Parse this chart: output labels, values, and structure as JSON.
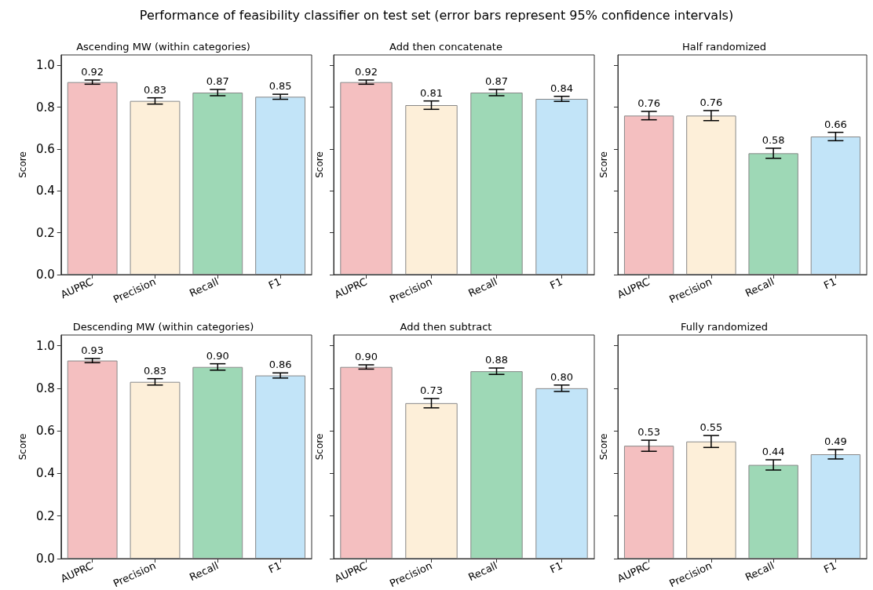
{
  "chart_data": [
    {
      "type": "bar",
      "title": "Ascending MW (within categories)",
      "ylabel": "Score",
      "annotations": [
        "Performance of feasibility classifier on test set (error bars represent 95% confidence intervals)"
      ],
      "categories": [
        "AUPRC",
        "Precision",
        "Recall",
        "F1"
      ],
      "values": [
        0.92,
        0.83,
        0.87,
        0.85
      ],
      "value_labels": [
        "0.92",
        "0.83",
        "0.87",
        "0.85"
      ],
      "errors": [
        0.01,
        0.015,
        0.015,
        0.012
      ],
      "colors": [
        "#f4bfc0",
        "#fdefd9",
        "#9ed8b6",
        "#c2e4f8"
      ],
      "ylim": [
        0,
        1.05
      ],
      "yticks": [
        {
          "value": 0,
          "label": "0.0"
        },
        {
          "value": 0.2,
          "label": "0.2"
        },
        {
          "value": 0.4,
          "label": "0.4"
        },
        {
          "value": 0.6,
          "label": "0.6"
        },
        {
          "value": 0.8,
          "label": "0.8"
        },
        {
          "value": 1,
          "label": "1.0"
        }
      ]
    },
    {
      "type": "bar",
      "title": "Add then concatenate",
      "ylabel": "Score",
      "categories": [
        "AUPRC",
        "Precision",
        "Recall",
        "F1"
      ],
      "values": [
        0.92,
        0.81,
        0.87,
        0.84
      ],
      "value_labels": [
        "0.92",
        "0.81",
        "0.87",
        "0.84"
      ],
      "errors": [
        0.01,
        0.02,
        0.015,
        0.012
      ],
      "colors": [
        "#f4bfc0",
        "#fdefd9",
        "#9ed8b6",
        "#c2e4f8"
      ],
      "ylim": [
        0,
        1.05
      ],
      "yticks": [
        {
          "value": 0,
          "label": null
        },
        {
          "value": 0.2,
          "label": null
        },
        {
          "value": 0.4,
          "label": null
        },
        {
          "value": 0.6,
          "label": null
        },
        {
          "value": 0.8,
          "label": null
        },
        {
          "value": 1,
          "label": null
        }
      ],
      "tick_labels": "x"
    },
    {
      "type": "bar",
      "title": "Half randomized",
      "ylabel": "Score",
      "categories": [
        "AUPRC",
        "Precision",
        "Recall",
        "F1"
      ],
      "values": [
        0.76,
        0.76,
        0.58,
        0.66
      ],
      "value_labels": [
        "0.76",
        "0.76",
        "0.58",
        "0.66"
      ],
      "errors": [
        0.02,
        0.024,
        0.024,
        0.02
      ],
      "colors": [
        "#f4bfc0",
        "#fdefd9",
        "#9ed8b6",
        "#c2e4f8"
      ],
      "ylim": [
        0,
        1.05
      ],
      "yticks": [
        {
          "value": 0,
          "label": null
        },
        {
          "value": 0.2,
          "label": null
        },
        {
          "value": 0.4,
          "label": null
        },
        {
          "value": 0.6,
          "label": null
        },
        {
          "value": 0.8,
          "label": null
        },
        {
          "value": 1,
          "label": null
        }
      ],
      "tick_labels": "x"
    },
    {
      "type": "bar",
      "title": "Descending MW (within categories)",
      "ylabel": "Score",
      "categories": [
        "AUPRC",
        "Precision",
        "Recall",
        "F1"
      ],
      "values": [
        0.93,
        0.83,
        0.9,
        0.86
      ],
      "value_labels": [
        "0.93",
        "0.83",
        "0.90",
        "0.86"
      ],
      "errors": [
        0.01,
        0.015,
        0.015,
        0.012
      ],
      "colors": [
        "#f4bfc0",
        "#fdefd9",
        "#9ed8b6",
        "#c2e4f8"
      ],
      "ylim": [
        0,
        1.05
      ],
      "yticks": [
        {
          "value": 0,
          "label": "0.0"
        },
        {
          "value": 0.2,
          "label": "0.2"
        },
        {
          "value": 0.4,
          "label": "0.4"
        },
        {
          "value": 0.6,
          "label": "0.6"
        },
        {
          "value": 0.8,
          "label": "0.8"
        },
        {
          "value": 1,
          "label": "1.0"
        }
      ]
    },
    {
      "type": "bar",
      "title": "Add then subtract",
      "ylabel": "Score",
      "categories": [
        "AUPRC",
        "Precision",
        "Recall",
        "F1"
      ],
      "values": [
        0.9,
        0.73,
        0.88,
        0.8
      ],
      "value_labels": [
        "0.90",
        "0.73",
        "0.88",
        "0.80"
      ],
      "errors": [
        0.01,
        0.022,
        0.015,
        0.015
      ],
      "colors": [
        "#f4bfc0",
        "#fdefd9",
        "#9ed8b6",
        "#c2e4f8"
      ],
      "ylim": [
        0,
        1.05
      ],
      "yticks": [
        {
          "value": 0,
          "label": null
        },
        {
          "value": 0.2,
          "label": null
        },
        {
          "value": 0.4,
          "label": null
        },
        {
          "value": 0.6,
          "label": null
        },
        {
          "value": 0.8,
          "label": null
        },
        {
          "value": 1,
          "label": null
        }
      ],
      "tick_labels": "x"
    },
    {
      "type": "bar",
      "title": "Fully randomized",
      "ylabel": "Score",
      "categories": [
        "AUPRC",
        "Precision",
        "Recall",
        "F1"
      ],
      "values": [
        0.53,
        0.55,
        0.44,
        0.49
      ],
      "value_labels": [
        "0.53",
        "0.55",
        "0.44",
        "0.49"
      ],
      "errors": [
        0.026,
        0.028,
        0.024,
        0.022
      ],
      "colors": [
        "#f4bfc0",
        "#fdefd9",
        "#9ed8b6",
        "#c2e4f8"
      ],
      "ylim": [
        0,
        1.05
      ],
      "yticks": [
        {
          "value": 0,
          "label": null
        },
        {
          "value": 0.2,
          "label": null
        },
        {
          "value": 0.4,
          "label": null
        },
        {
          "value": 0.6,
          "label": null
        },
        {
          "value": 0.8,
          "label": null
        },
        {
          "value": 1,
          "label": null
        }
      ],
      "tick_labels": "x"
    }
  ]
}
